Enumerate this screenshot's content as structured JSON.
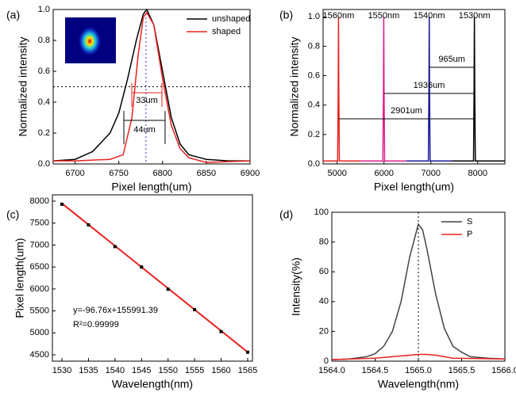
{
  "chart_data": [
    {
      "type": "line",
      "label": "(a)",
      "xlabel": "Pixel length(um)",
      "ylabel": "Normalized intensity",
      "xlim": [
        6675,
        6900
      ],
      "ylim": [
        0,
        1.0
      ],
      "xticks": [
        6700,
        6750,
        6800,
        6850,
        6900
      ],
      "yticks": [
        {
          "value": 0,
          "label": "0.0"
        },
        {
          "value": 0.2,
          "label": "0.2"
        },
        {
          "value": 0.4,
          "label": "0.4"
        },
        {
          "value": 0.6,
          "label": "0.6"
        },
        {
          "value": 0.8,
          "label": "0.8"
        },
        {
          "value": 1.0,
          "label": "1.0"
        }
      ],
      "legend": "upper right",
      "hline": 0.5,
      "vline": 6781,
      "annotations": [
        "33um",
        "44um"
      ],
      "series": [
        {
          "name": "unshaped",
          "color": "#000000",
          "x": [
            6675,
            6700,
            6720,
            6740,
            6750,
            6760,
            6770,
            6778,
            6782,
            6790,
            6800,
            6810,
            6820,
            6830,
            6850,
            6875,
            6900
          ],
          "values": [
            0.02,
            0.03,
            0.08,
            0.2,
            0.33,
            0.55,
            0.8,
            0.97,
            1.0,
            0.9,
            0.6,
            0.3,
            0.13,
            0.06,
            0.03,
            0.02,
            0.02
          ]
        },
        {
          "name": "shaped",
          "color": "#e8231f",
          "x": [
            6675,
            6700,
            6740,
            6755,
            6765,
            6772,
            6778,
            6782,
            6790,
            6800,
            6810,
            6820,
            6830,
            6850,
            6900
          ],
          "values": [
            0.02,
            0.02,
            0.03,
            0.06,
            0.3,
            0.7,
            0.95,
            0.98,
            0.9,
            0.55,
            0.25,
            0.1,
            0.04,
            0.01,
            0.02
          ]
        }
      ]
    },
    {
      "type": "line",
      "label": "(b)",
      "xlabel": "Pixel length(um)",
      "ylabel": "Normalized intensity",
      "xlim": [
        4700,
        8580
      ],
      "ylim": [
        0,
        1.05
      ],
      "xticks": [
        5000,
        6000,
        7000,
        8000
      ],
      "yticks": [
        {
          "value": 0,
          "label": "0.0"
        },
        {
          "value": 0.2,
          "label": "0.2"
        },
        {
          "value": 0.4,
          "label": "0.4"
        },
        {
          "value": 0.6,
          "label": "0.6"
        },
        {
          "value": 0.8,
          "label": "0.8"
        },
        {
          "value": 1.0,
          "label": "1.0"
        }
      ],
      "annotations": [
        "965um",
        "1936um",
        "2901um"
      ],
      "series": [
        {
          "name": "1560nm",
          "color": "#e8231f",
          "x": [
            4700,
            5010,
            5022,
            5029,
            5036,
            5048,
            5500
          ],
          "values": [
            0.02,
            0.02,
            0.5,
            1.0,
            0.5,
            0.02,
            0.02
          ]
        },
        {
          "name": "1550nm",
          "color": "#e0208a",
          "x": [
            5500,
            5975,
            5987,
            5994,
            6001,
            6013,
            6480
          ],
          "values": [
            0.02,
            0.02,
            0.5,
            1.0,
            0.5,
            0.02,
            0.02
          ]
        },
        {
          "name": "1540nm",
          "color": "#1a1a9c",
          "x": [
            6480,
            6946,
            6958,
            6965,
            6972,
            6984,
            7450
          ],
          "values": [
            0.02,
            0.02,
            0.5,
            1.0,
            0.5,
            0.02,
            0.02
          ]
        },
        {
          "name": "1530nm",
          "color": "#000000",
          "x": [
            7450,
            7911,
            7923,
            7930,
            7937,
            7949,
            8580
          ],
          "values": [
            0.02,
            0.02,
            0.5,
            1.0,
            0.5,
            0.02,
            0.02
          ]
        }
      ]
    },
    {
      "type": "scatter",
      "label": "(c)",
      "xlabel": "Wavelength(nm)",
      "ylabel": "Pixel length(um)",
      "xlim": [
        1528.2,
        1565.9
      ],
      "ylim": [
        4356,
        8144
      ],
      "xticks": [
        1530,
        1535,
        1540,
        1545,
        1550,
        1555,
        1560,
        1565
      ],
      "yticks": [
        4500,
        5000,
        5500,
        6000,
        6500,
        7000,
        7500,
        8000
      ],
      "annotations": [
        "y=-96.76x+155991.39",
        "R²=0.99999"
      ],
      "color": "#000000",
      "x": [
        1530,
        1535,
        1540,
        1545,
        1550,
        1555,
        1560,
        1565
      ],
      "values": [
        7930,
        7460,
        6965,
        6500,
        5994,
        5530,
        5029,
        4560
      ],
      "fit": {
        "color": "#e8231f",
        "x": [
          1530,
          1565
        ],
        "values": [
          7948.6,
          4562
        ]
      }
    },
    {
      "type": "line",
      "label": "(d)",
      "xlabel": "Wavelength(nm)",
      "ylabel": "Intensity(%)",
      "xlim": [
        1564.0,
        1566.0
      ],
      "ylim": [
        0,
        100
      ],
      "xticks": [
        {
          "value": 1564.0,
          "label": "1564.0"
        },
        {
          "value": 1564.5,
          "label": "1564.5"
        },
        {
          "value": 1565.0,
          "label": "1565.0"
        },
        {
          "value": 1565.5,
          "label": "1565.5"
        },
        {
          "value": 1566.0,
          "label": "1566.0"
        }
      ],
      "yticks": [
        0,
        20,
        40,
        60,
        80,
        100
      ],
      "legend": "upper right",
      "vline": 1565.0,
      "series": [
        {
          "name": "S",
          "color": "#444444",
          "x": [
            1564.0,
            1564.2,
            1564.4,
            1564.5,
            1564.6,
            1564.7,
            1564.8,
            1564.9,
            1565.0,
            1565.05,
            1565.1,
            1565.2,
            1565.3,
            1565.4,
            1565.5,
            1565.6,
            1565.8,
            1566.0
          ],
          "values": [
            1,
            1.5,
            3,
            5,
            10,
            20,
            40,
            70,
            92,
            88,
            75,
            45,
            22,
            10,
            6,
            3,
            2,
            1.5
          ]
        },
        {
          "name": "P",
          "color": "#e8231f",
          "x": [
            1564.0,
            1564.5,
            1564.9,
            1565.0,
            1565.1,
            1565.2,
            1565.4,
            1566.0
          ],
          "values": [
            1,
            2,
            4,
            4.5,
            4.5,
            4,
            2,
            1.5
          ]
        }
      ]
    }
  ]
}
